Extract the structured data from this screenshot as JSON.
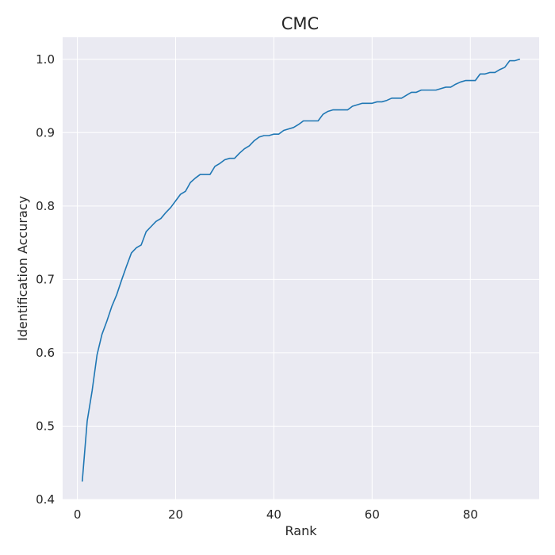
{
  "chart_data": {
    "type": "line",
    "title": "CMC",
    "xlabel": "Rank",
    "ylabel": "Identification Accuracy",
    "xlim": [
      -3,
      94
    ],
    "ylim": [
      0.4,
      1.03
    ],
    "xticks": [
      0,
      20,
      40,
      60,
      80
    ],
    "yticks": [
      0.4,
      0.5,
      0.6,
      0.7,
      0.8,
      0.9,
      1.0
    ],
    "grid": true,
    "colors": {
      "background": "#eaeaf2",
      "grid": "#ffffff",
      "line": "#1f77b4"
    },
    "series": [
      {
        "x": [
          1,
          2,
          3,
          4,
          5,
          6,
          7,
          8,
          9,
          10,
          11,
          12,
          13,
          14,
          15,
          16,
          17,
          18,
          19,
          20,
          21,
          22,
          23,
          24,
          25,
          26,
          27,
          28,
          29,
          30,
          31,
          32,
          33,
          34,
          35,
          36,
          37,
          38,
          39,
          40,
          41,
          42,
          43,
          44,
          45,
          46,
          47,
          48,
          49,
          50,
          51,
          52,
          53,
          54,
          55,
          56,
          57,
          58,
          59,
          60,
          61,
          62,
          63,
          64,
          65,
          66,
          67,
          68,
          69,
          70,
          71,
          72,
          73,
          74,
          75,
          76,
          77,
          78,
          79,
          80,
          81,
          82,
          83,
          84,
          85,
          86,
          87,
          88,
          89,
          90
        ],
        "y": [
          0.425,
          0.507,
          0.548,
          0.597,
          0.625,
          0.643,
          0.663,
          0.679,
          0.699,
          0.718,
          0.736,
          0.743,
          0.747,
          0.765,
          0.772,
          0.779,
          0.783,
          0.791,
          0.798,
          0.807,
          0.816,
          0.82,
          0.832,
          0.838,
          0.843,
          0.843,
          0.843,
          0.854,
          0.858,
          0.863,
          0.865,
          0.865,
          0.872,
          0.878,
          0.882,
          0.889,
          0.894,
          0.896,
          0.896,
          0.898,
          0.898,
          0.903,
          0.905,
          0.907,
          0.911,
          0.916,
          0.916,
          0.916,
          0.916,
          0.925,
          0.929,
          0.931,
          0.931,
          0.931,
          0.931,
          0.936,
          0.938,
          0.94,
          0.94,
          0.94,
          0.942,
          0.942,
          0.944,
          0.947,
          0.947,
          0.947,
          0.951,
          0.955,
          0.955,
          0.958,
          0.958,
          0.958,
          0.958,
          0.96,
          0.962,
          0.962,
          0.966,
          0.969,
          0.971,
          0.971,
          0.971,
          0.98,
          0.98,
          0.982,
          0.982,
          0.986,
          0.989,
          0.998,
          0.998,
          1.0
        ]
      }
    ]
  }
}
